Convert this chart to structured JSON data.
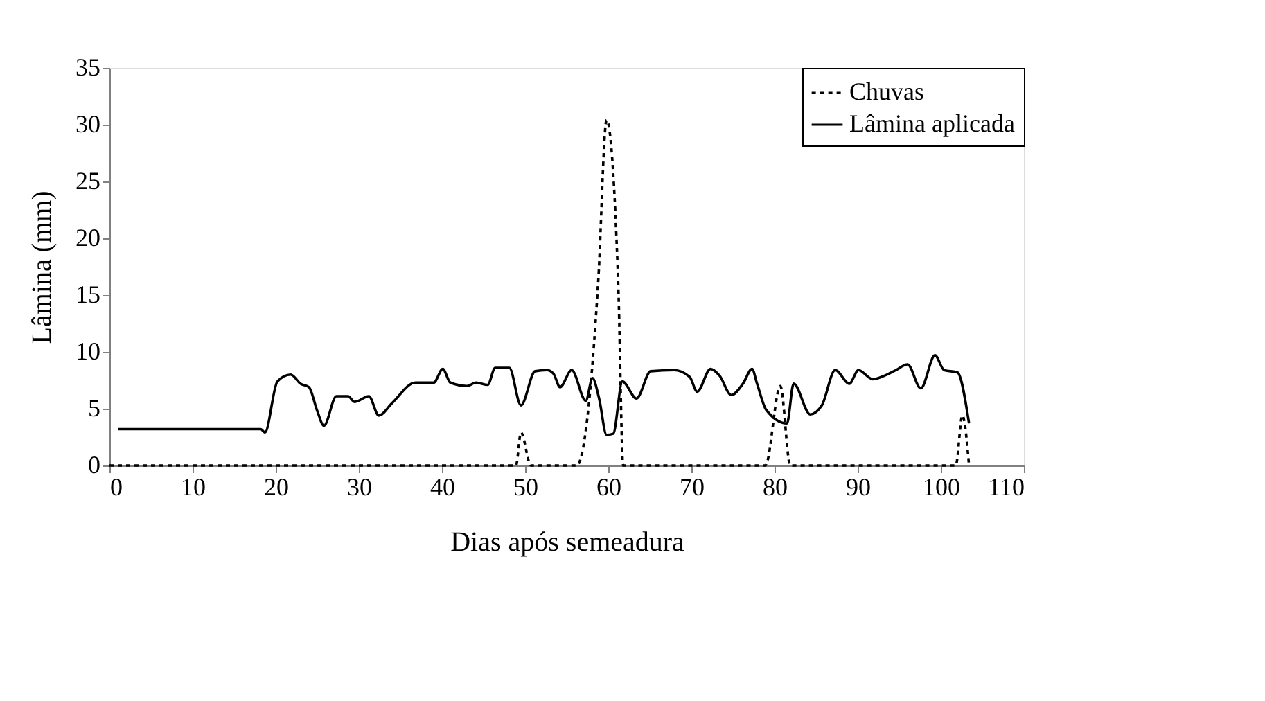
{
  "chart_data": {
    "type": "line",
    "xlabel": "Dias após semeadura",
    "ylabel": "Lâmina (mm)",
    "xlim": [
      0,
      110
    ],
    "xticks": [
      0,
      10,
      20,
      30,
      40,
      50,
      60,
      70,
      80,
      90,
      100,
      110
    ],
    "ylim": [
      0,
      35
    ],
    "yticks": [
      0,
      5,
      10,
      15,
      20,
      25,
      30,
      35
    ],
    "grid": false,
    "legend": "top right",
    "marker": "none",
    "series": [
      {
        "name": "Chuvas",
        "color": "#000000",
        "line_style": "dotted",
        "x": [
          0,
          48.9,
          49.5,
          50.7,
          56.2,
          58.8,
          59.8,
          61.2,
          61.8,
          78.9,
          80.7,
          81.9,
          101.8,
          102.6,
          103.4
        ],
        "values": [
          0,
          0,
          2.9,
          0,
          0,
          16.3,
          30.4,
          16,
          0,
          0,
          7.0,
          0,
          0,
          4.4,
          0
        ]
      },
      {
        "name": "Lâmina aplicada",
        "color": "#000000",
        "line_style": "solid",
        "x": [
          1,
          18.2,
          18.7,
          20.2,
          21.8,
          23,
          24,
          25,
          25.8,
          27.3,
          28.7,
          29.5,
          31.2,
          32.4,
          34,
          36.8,
          39,
          40.1,
          41,
          43,
          44.1,
          45.5,
          46.4,
          48.1,
          49.5,
          51.2,
          52.6,
          53.4,
          54.2,
          55.6,
          57.3,
          58.1,
          58.9,
          59.8,
          60.6,
          61.7,
          63.4,
          65.1,
          67.9,
          69.8,
          70.7,
          72.3,
          73.4,
          74.8,
          76.2,
          77.3,
          77.9,
          79,
          81.5,
          82.3,
          84.3,
          85.7,
          87.3,
          89,
          90.1,
          91.8,
          93.5,
          94.6,
          96,
          97.6,
          99.3,
          100.4,
          102,
          103.4
        ],
        "values": [
          3.2,
          3.2,
          2.9,
          7.4,
          8.0,
          7.2,
          6.9,
          4.8,
          3.5,
          6.1,
          6.1,
          5.6,
          6.1,
          4.4,
          5.5,
          7.3,
          7.3,
          8.5,
          7.3,
          7.0,
          7.3,
          7.1,
          8.6,
          8.6,
          5.3,
          8.3,
          8.4,
          8.1,
          6.9,
          8.4,
          5.7,
          7.7,
          5.9,
          2.7,
          2.8,
          7.4,
          5.9,
          8.3,
          8.4,
          7.8,
          6.5,
          8.5,
          7.9,
          6.2,
          7.2,
          8.5,
          7.2,
          4.9,
          3.7,
          7.2,
          4.5,
          5.3,
          8.4,
          7.2,
          8.4,
          7.6,
          8.0,
          8.4,
          8.9,
          6.8,
          9.7,
          8.4,
          8.2,
          3.7
        ]
      }
    ]
  }
}
